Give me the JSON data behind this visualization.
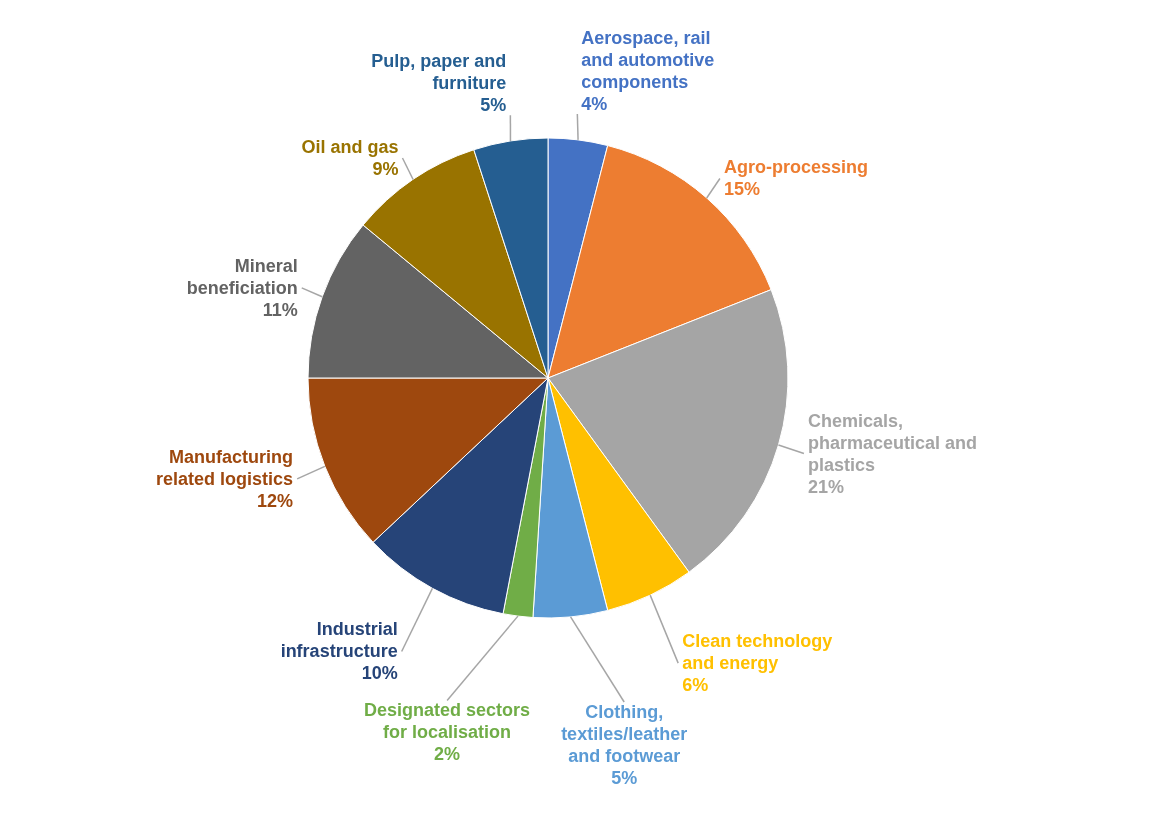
{
  "chart_data": {
    "type": "pie",
    "categories": [
      "Aerospace, rail and automotive components",
      "Agro-processing",
      "Chemicals, pharmaceutical and plastics",
      "Clean technology and energy",
      "Clothing, textiles/leather and footwear",
      "Designated sectors for localisation",
      "Industrial infrastructure",
      "Manufacturing related logistics",
      "Mineral beneficiation",
      "Oil and gas",
      "Pulp, paper and furniture"
    ],
    "values": [
      4,
      15,
      21,
      6,
      5,
      2,
      10,
      12,
      11,
      9,
      5
    ],
    "value_labels": [
      "4%",
      "15%",
      "21%",
      "6%",
      "5%",
      "2%",
      "10%",
      "12%",
      "11%",
      "9%",
      "5%"
    ],
    "colors": [
      "#4472c4",
      "#ed7d31",
      "#a5a5a5",
      "#ffc000",
      "#5b9bd5",
      "#70ad47",
      "#264478",
      "#9e480e",
      "#636363",
      "#997300",
      "#255e91"
    ]
  }
}
